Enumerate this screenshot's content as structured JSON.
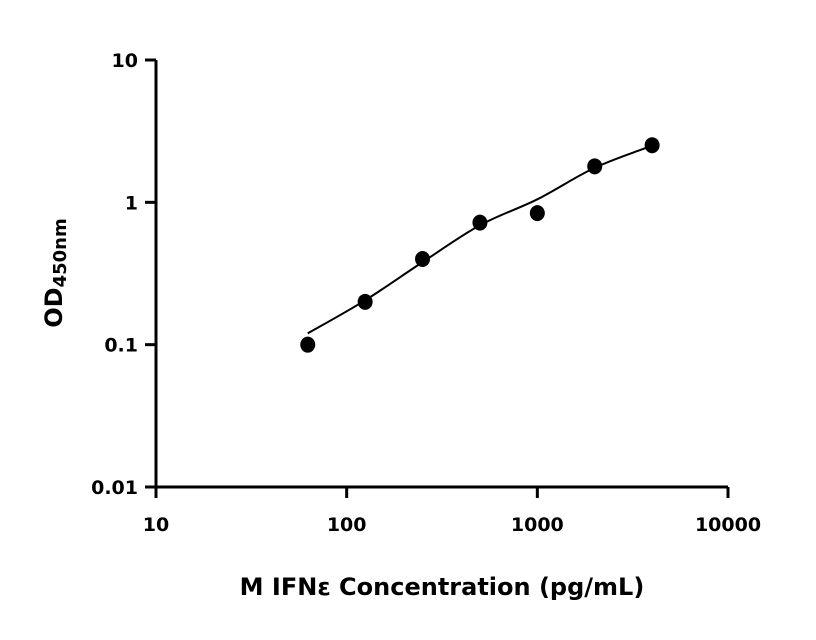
{
  "chart_data": {
    "type": "scatter",
    "title": "",
    "xlabel": "M IFNε Concentration (pg/mL)",
    "ylabel": "OD",
    "ylabel_subscript": "450nm",
    "xscale": "log",
    "yscale": "log",
    "xlim": [
      10,
      10000
    ],
    "ylim": [
      0.01,
      10
    ],
    "xticks": [
      "10",
      "100",
      "1000",
      "10000"
    ],
    "yticks": [
      "0.01",
      "0.1",
      "1",
      "10"
    ],
    "grid": false,
    "legend": "none",
    "series": [
      {
        "x": [
          62.5,
          125,
          250,
          500,
          1000,
          2000,
          4000
        ],
        "y": [
          0.1,
          0.2,
          0.4,
          0.72,
          0.84,
          1.79,
          2.52
        ],
        "marker": "circle",
        "color": "#000000"
      }
    ],
    "fit_curve": {
      "x": [
        62.5,
        125,
        250,
        500,
        1000,
        2000,
        4000
      ],
      "y": [
        0.12,
        0.205,
        0.38,
        0.69,
        1.05,
        1.75,
        2.5
      ],
      "color": "#000000"
    }
  }
}
